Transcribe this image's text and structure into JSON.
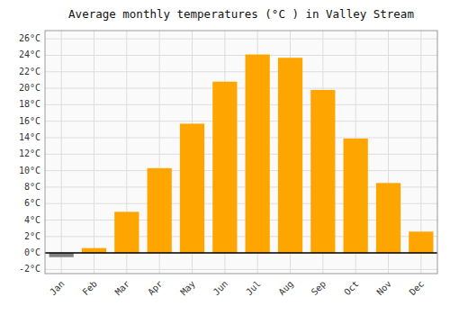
{
  "chart_data": {
    "type": "bar",
    "title": "Average monthly temperatures (°C ) in Valley Stream",
    "categories": [
      "Jan",
      "Feb",
      "Mar",
      "Apr",
      "May",
      "Jun",
      "Jul",
      "Aug",
      "Sep",
      "Oct",
      "Nov",
      "Dec"
    ],
    "values": [
      -0.5,
      0.6,
      5.0,
      10.3,
      15.7,
      20.8,
      24.1,
      23.7,
      19.8,
      13.9,
      8.5,
      2.6
    ],
    "colors": [
      "#808080",
      "#FFA500",
      "#FFA500",
      "#FFA500",
      "#FFA500",
      "#FFA500",
      "#FFA500",
      "#FFA500",
      "#FFA500",
      "#FFA500",
      "#FFA500",
      "#FFA500"
    ],
    "ylim": [
      -2.5,
      27
    ],
    "yticks": [
      {
        "value": -2,
        "label": "-2°C"
      },
      {
        "value": 0,
        "label": "0°C"
      },
      {
        "value": 2,
        "label": "2°C"
      },
      {
        "value": 4,
        "label": "4°C"
      },
      {
        "value": 6,
        "label": "6°C"
      },
      {
        "value": 8,
        "label": "8°C"
      },
      {
        "value": 10,
        "label": "10°C"
      },
      {
        "value": 12,
        "label": "12°C"
      },
      {
        "value": 14,
        "label": "14°C"
      },
      {
        "value": 16,
        "label": "16°C"
      },
      {
        "value": 18,
        "label": "18°C"
      },
      {
        "value": 20,
        "label": "20°C"
      },
      {
        "value": 22,
        "label": "22°C"
      },
      {
        "value": 24,
        "label": "24°C"
      },
      {
        "value": 26,
        "label": "26°C"
      }
    ],
    "grid": true
  }
}
